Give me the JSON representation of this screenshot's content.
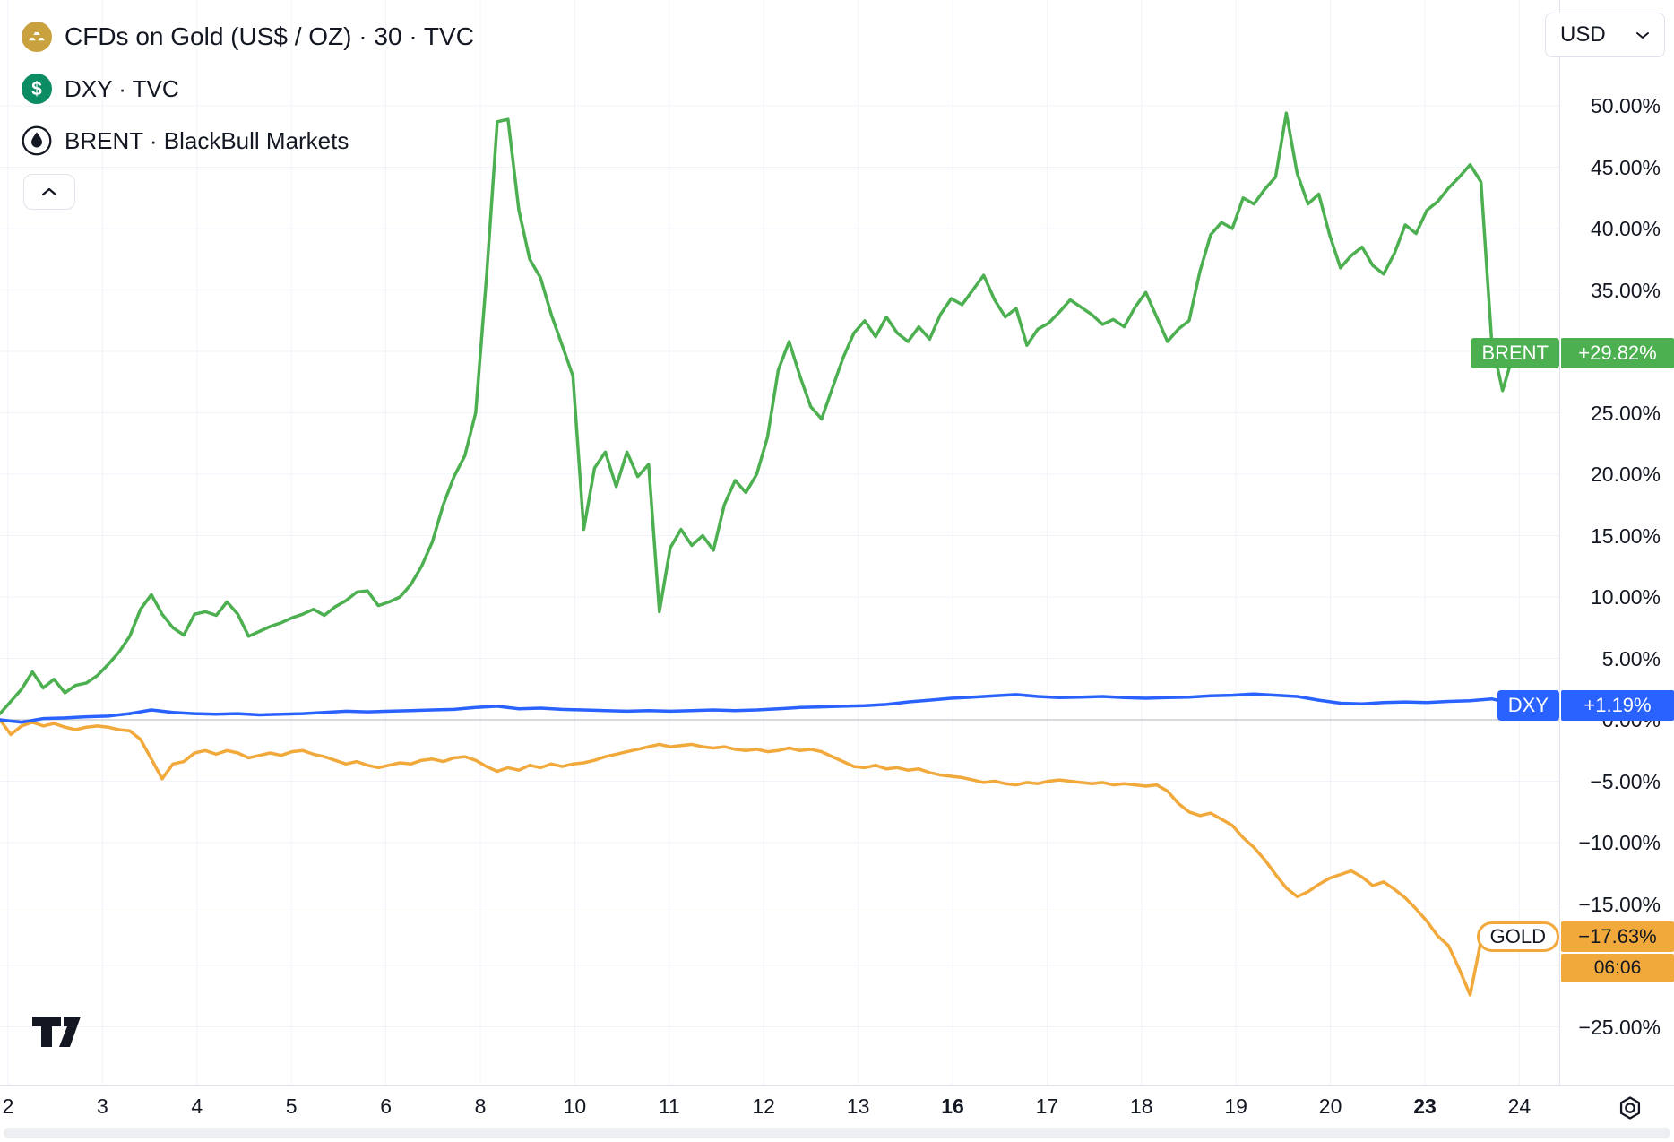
{
  "legend": {
    "items": [
      {
        "symbol": "GOLD",
        "label": "CFDs on Gold (US$ / OZ) · 30 · TVC",
        "icon": "gold-bars-icon",
        "icon_bg": "#C9A23F"
      },
      {
        "symbol": "DXY",
        "label": "DXY · TVC",
        "icon": "dollar-circle-icon",
        "icon_bg": "#0B8C63",
        "icon_glyph": "$"
      },
      {
        "symbol": "BRENT",
        "label": "BRENT · BlackBull Markets",
        "icon": "oil-drop-icon",
        "icon_bg": "#FFFFFF"
      }
    ]
  },
  "toolbar": {
    "currency": "USD"
  },
  "colors": {
    "brent": "#4CAF50",
    "dxy": "#2962FF",
    "gold": "#F2A93B",
    "grid": "#F0F3FA",
    "zero_line": "#B2B5BE",
    "text": "#131722",
    "axis_border": "#E0E3EB"
  },
  "chart_data": {
    "type": "line",
    "unit": "percent-change",
    "x_axis": {
      "tick_labels": [
        "2",
        "3",
        "4",
        "5",
        "6",
        "8",
        "10",
        "11",
        "12",
        "13",
        "16",
        "17",
        "18",
        "19",
        "20",
        "23",
        "24"
      ],
      "bold_labels": [
        "16",
        "23"
      ]
    },
    "y_axis": {
      "min": -25,
      "max": 50,
      "step": 5,
      "visible_ticks": [
        {
          "value": 50,
          "label": "50.00%"
        },
        {
          "value": 45,
          "label": "45.00%"
        },
        {
          "value": 40,
          "label": "40.00%"
        },
        {
          "value": 35,
          "label": "35.00%"
        },
        {
          "value": 25,
          "label": "25.00%"
        },
        {
          "value": 20,
          "label": "20.00%"
        },
        {
          "value": 15,
          "label": "15.00%"
        },
        {
          "value": 10,
          "label": "10.00%"
        },
        {
          "value": 5,
          "label": "5.00%"
        },
        {
          "value": 0,
          "label": "0.00%"
        },
        {
          "value": -5,
          "label": "−5.00%"
        },
        {
          "value": -10,
          "label": "−10.00%"
        },
        {
          "value": -15,
          "label": "−15.00%"
        },
        {
          "value": -25,
          "label": "−25.00%"
        }
      ]
    },
    "series": [
      {
        "name": "GOLD",
        "full_name": "CFDs on Gold (US$ / OZ) · 30 · TVC",
        "color": "#F2A93B",
        "badge_text_color": "#131722",
        "change_label": "−17.63%",
        "countdown": "06:06",
        "last_value_pct": -17.63,
        "values": [
          0,
          -1.2,
          -0.5,
          -0.2,
          -0.5,
          -0.3,
          -0.6,
          -0.8,
          -0.6,
          -0.5,
          -0.6,
          -0.8,
          -0.9,
          -1.6,
          -3.2,
          -4.8,
          -3.6,
          -3.4,
          -2.7,
          -2.5,
          -2.8,
          -2.5,
          -2.7,
          -3.1,
          -2.9,
          -2.7,
          -2.9,
          -2.6,
          -2.5,
          -2.8,
          -3.0,
          -3.3,
          -3.6,
          -3.4,
          -3.7,
          -3.9,
          -3.7,
          -3.5,
          -3.6,
          -3.3,
          -3.2,
          -3.4,
          -3.1,
          -3.0,
          -3.3,
          -3.8,
          -4.2,
          -3.9,
          -4.1,
          -3.7,
          -3.9,
          -3.6,
          -3.8,
          -3.6,
          -3.5,
          -3.3,
          -3.0,
          -2.8,
          -2.6,
          -2.4,
          -2.2,
          -2.0,
          -2.2,
          -2.1,
          -2.0,
          -2.2,
          -2.3,
          -2.2,
          -2.4,
          -2.5,
          -2.4,
          -2.6,
          -2.5,
          -2.3,
          -2.5,
          -2.4,
          -2.6,
          -3.0,
          -3.4,
          -3.8,
          -3.9,
          -3.7,
          -4.0,
          -3.9,
          -4.1,
          -4.0,
          -4.3,
          -4.5,
          -4.6,
          -4.7,
          -4.9,
          -5.1,
          -5.0,
          -5.2,
          -5.3,
          -5.1,
          -5.2,
          -5.0,
          -4.9,
          -5.0,
          -5.1,
          -5.2,
          -5.1,
          -5.3,
          -5.2,
          -5.3,
          -5.4,
          -5.3,
          -5.8,
          -6.8,
          -7.5,
          -7.8,
          -7.6,
          -8.1,
          -8.6,
          -9.6,
          -10.4,
          -11.4,
          -12.6,
          -13.7,
          -14.4,
          -14.0,
          -13.4,
          -12.9,
          -12.6,
          -12.3,
          -12.8,
          -13.5,
          -13.2,
          -13.8,
          -14.5,
          -15.4,
          -16.4,
          -17.6,
          -18.4,
          -20.3,
          -22.4,
          -18.0,
          -17.1,
          -17.5,
          -17.2,
          -17.5,
          -17.4,
          -17.6,
          -17.63
        ]
      },
      {
        "name": "DXY",
        "full_name": "DXY · TVC",
        "color": "#2962FF",
        "badge_text_color": "#FFFFFF",
        "change_label": "+1.19%",
        "last_value_pct": 1.19,
        "values": [
          0.0,
          -0.2,
          0.1,
          0.15,
          0.25,
          0.3,
          0.5,
          0.8,
          0.6,
          0.5,
          0.45,
          0.5,
          0.4,
          0.45,
          0.5,
          0.6,
          0.7,
          0.65,
          0.7,
          0.75,
          0.8,
          0.85,
          1.0,
          1.1,
          0.9,
          0.95,
          0.85,
          0.8,
          0.75,
          0.7,
          0.75,
          0.7,
          0.75,
          0.8,
          0.75,
          0.8,
          0.9,
          1.0,
          1.05,
          1.1,
          1.15,
          1.25,
          1.45,
          1.6,
          1.75,
          1.85,
          1.95,
          2.05,
          1.9,
          1.8,
          1.85,
          1.9,
          1.8,
          1.75,
          1.8,
          1.85,
          1.95,
          2.0,
          2.1,
          2.0,
          1.9,
          1.6,
          1.35,
          1.3,
          1.4,
          1.45,
          1.4,
          1.5,
          1.55,
          1.7,
          1.3,
          1.25,
          1.19
        ]
      },
      {
        "name": "BRENT",
        "full_name": "BRENT · BlackBull Markets",
        "color": "#4CAF50",
        "badge_text_color": "#FFFFFF",
        "change_label": "+29.82%",
        "last_value_pct": 29.82,
        "values": [
          0.5,
          1.5,
          2.5,
          3.9,
          2.6,
          3.3,
          2.2,
          2.8,
          3.0,
          3.6,
          4.5,
          5.5,
          6.8,
          9.0,
          10.2,
          8.6,
          7.5,
          6.9,
          8.6,
          8.8,
          8.5,
          9.6,
          8.6,
          6.8,
          7.2,
          7.6,
          7.9,
          8.3,
          8.6,
          9.0,
          8.5,
          9.2,
          9.7,
          10.4,
          10.5,
          9.3,
          9.6,
          10.0,
          11.0,
          12.5,
          14.5,
          17.5,
          19.8,
          21.5,
          25.0,
          36.0,
          48.7,
          48.9,
          41.5,
          37.5,
          36.0,
          33.0,
          30.5,
          28.0,
          15.5,
          20.5,
          21.8,
          19.0,
          21.8,
          19.8,
          20.8,
          8.8,
          14.0,
          15.5,
          14.2,
          15.0,
          13.8,
          17.5,
          19.5,
          18.5,
          20.0,
          23.0,
          28.5,
          30.8,
          28.0,
          25.5,
          24.5,
          27.0,
          29.5,
          31.5,
          32.5,
          31.2,
          32.8,
          31.5,
          30.8,
          32.0,
          31.0,
          33.0,
          34.3,
          33.8,
          35.0,
          36.2,
          34.2,
          32.8,
          33.5,
          30.5,
          31.8,
          32.3,
          33.2,
          34.2,
          33.6,
          33.0,
          32.2,
          32.6,
          32.0,
          33.6,
          34.8,
          32.8,
          30.8,
          31.8,
          32.5,
          36.5,
          39.5,
          40.5,
          40.0,
          42.5,
          42.0,
          43.2,
          44.2,
          49.4,
          44.5,
          42.0,
          42.8,
          39.5,
          36.8,
          37.8,
          38.5,
          37.0,
          36.3,
          38.0,
          40.3,
          39.6,
          41.5,
          42.2,
          43.3,
          44.2,
          45.2,
          43.8,
          30.8,
          26.8,
          29.8,
          30.6,
          29.6,
          30.4,
          29.82
        ]
      }
    ]
  }
}
